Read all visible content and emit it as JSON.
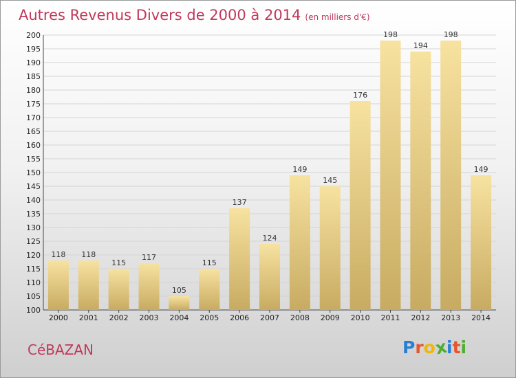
{
  "title": "Autres Revenus Divers de 2000 à 2014",
  "title_unit": "(en milliers d'€)",
  "commune": "CéBAZAN",
  "logo": {
    "letters": [
      "P",
      "r",
      "o",
      "x",
      "i",
      "t",
      "i"
    ],
    "colors": [
      "#2a7fd4",
      "#e8552a",
      "#f2b705",
      "#4caf2e",
      "#2a7fd4",
      "#e8552a",
      "#4caf2e"
    ]
  },
  "colors": {
    "accent": "#c0395a",
    "bar_light": "#f7e2a0",
    "bar_dark": "#c8ab62"
  },
  "chart_data": {
    "type": "bar",
    "categories": [
      "2000",
      "2001",
      "2002",
      "2003",
      "2004",
      "2005",
      "2006",
      "2007",
      "2008",
      "2009",
      "2010",
      "2011",
      "2012",
      "2013",
      "2014"
    ],
    "values": [
      118,
      118,
      115,
      117,
      105,
      115,
      137,
      124,
      149,
      145,
      176,
      198,
      194,
      198,
      149
    ],
    "title": "Autres Revenus Divers de 2000 à 2014",
    "xlabel": "",
    "ylabel": "",
    "ylim": [
      100,
      200
    ],
    "yticks": [
      100,
      105,
      110,
      115,
      120,
      125,
      130,
      135,
      140,
      145,
      150,
      155,
      160,
      165,
      170,
      175,
      180,
      185,
      190,
      195,
      200
    ],
    "grid": true,
    "data_labels": true
  }
}
